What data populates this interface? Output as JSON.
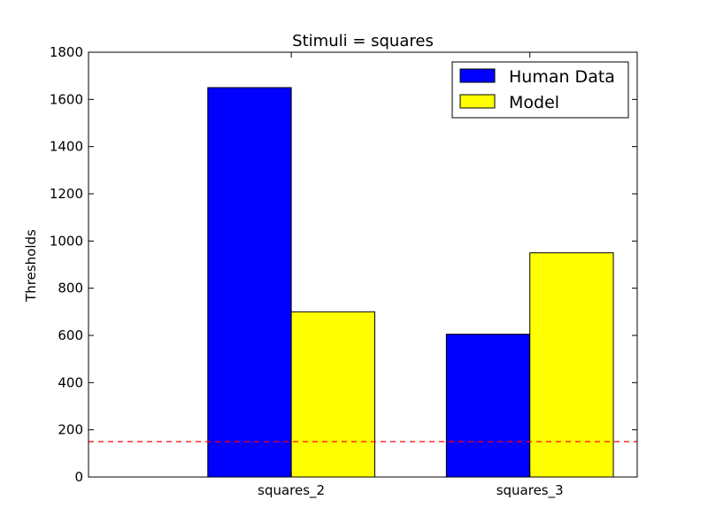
{
  "chart_data": {
    "type": "bar",
    "title": "Stimuli = squares",
    "xlabel": "",
    "ylabel": "Thresholds",
    "categories": [
      "squares_2",
      "squares_3"
    ],
    "series": [
      {
        "name": "Human Data",
        "values": [
          1650,
          605
        ],
        "color": "#0000ff"
      },
      {
        "name": "Model",
        "values": [
          700,
          950
        ],
        "color": "#ffff00"
      }
    ],
    "ylim": [
      0,
      1800
    ],
    "yticks": [
      0,
      200,
      400,
      600,
      800,
      1000,
      1200,
      1400,
      1600,
      1800
    ],
    "reference_line": {
      "y": 150,
      "color": "#ff0000",
      "style": "dashed"
    },
    "grid": false,
    "legend_position": "top-right"
  }
}
